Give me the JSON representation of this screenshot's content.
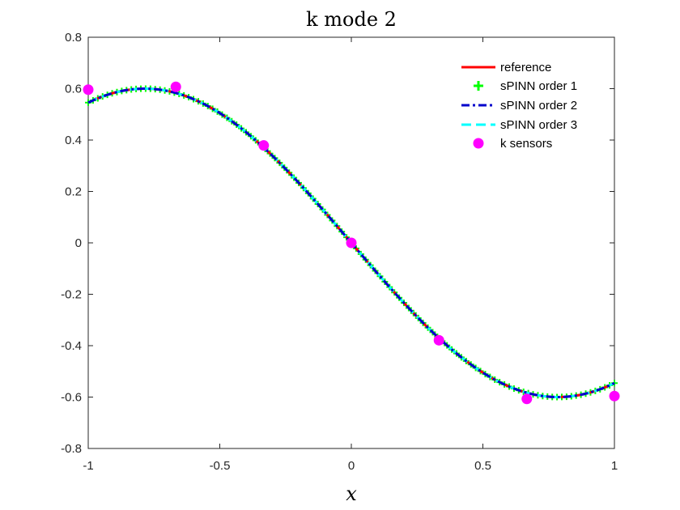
{
  "chart_data": {
    "type": "line",
    "title": "k mode 2",
    "xlabel": "x",
    "ylabel": "",
    "xlim": [
      -1,
      1
    ],
    "ylim": [
      -0.8,
      0.8
    ],
    "xticks": [
      "-1",
      "-0.5",
      "0",
      "0.5",
      "1"
    ],
    "yticks": [
      "-0.8",
      "-0.6",
      "-0.4",
      "-0.2",
      "0",
      "0.2",
      "0.4",
      "0.6",
      "0.8"
    ],
    "grid": false,
    "legend_position": "top-right",
    "function_form": "y = -0.6 * sin(2*x)",
    "x_start": -1,
    "x_end": 1,
    "series": [
      {
        "name": "reference",
        "color": "#ff0000",
        "style": "solid"
      },
      {
        "name": "sPINN order 1",
        "color": "#00ff00",
        "style": "plus-markers"
      },
      {
        "name": "sPINN order 2",
        "color": "#0000cc",
        "style": "dash-dot"
      },
      {
        "name": "sPINN order 3",
        "color": "#00ffff",
        "style": "dashed"
      },
      {
        "name": "k sensors",
        "color": "#ff00ff",
        "style": "circle-markers",
        "x": [
          -1,
          -0.667,
          -0.333,
          0,
          0.333,
          0.667,
          1
        ],
        "y": [
          0.596,
          0.607,
          0.379,
          0,
          -0.379,
          -0.607,
          -0.596
        ]
      }
    ]
  }
}
